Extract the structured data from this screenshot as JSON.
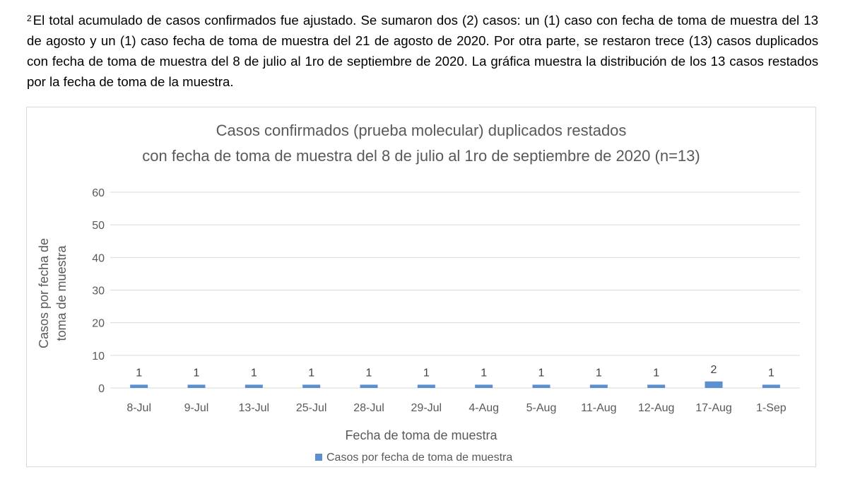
{
  "note": {
    "marker": "2",
    "text": "El total acumulado de casos confirmados fue ajustado. Se sumaron dos (2) casos: un (1) caso con fecha de toma de muestra del 13 de agosto y un (1) caso fecha de toma de muestra del 21 de agosto de 2020. Por otra parte, se restaron trece (13) casos duplicados con fecha de toma de muestra del 8 de julio al 1ro de septiembre de 2020. La gráfica muestra la distribución de los 13 casos restados por la fecha de toma de la muestra."
  },
  "chart_data": {
    "type": "bar",
    "title": "Casos confirmados (prueba molecular) duplicados restados",
    "subtitle": "con fecha de toma de muestra del 8 de julio al 1ro de septiembre de 2020 (n=13)",
    "categories": [
      "8-Jul",
      "9-Jul",
      "13-Jul",
      "25-Jul",
      "28-Jul",
      "29-Jul",
      "4-Aug",
      "5-Aug",
      "11-Aug",
      "12-Aug",
      "17-Aug",
      "1-Sep"
    ],
    "series": [
      {
        "name": "Casos por fecha de toma de muestra",
        "values": [
          1,
          1,
          1,
          1,
          1,
          1,
          1,
          1,
          1,
          1,
          2,
          1
        ]
      }
    ],
    "xlabel": "Fecha de toma de muestra",
    "ylabel_lines": [
      "Casos por fecha de",
      "toma de muestra"
    ],
    "ylim": [
      0,
      60
    ],
    "yticks": [
      0,
      10,
      20,
      30,
      40,
      50,
      60
    ],
    "grid": true,
    "data_labels": true,
    "legend_position": "bottom",
    "colors": {
      "bar": "#5b8fcf",
      "grid": "#d9d9d9",
      "text": "#595959"
    }
  }
}
